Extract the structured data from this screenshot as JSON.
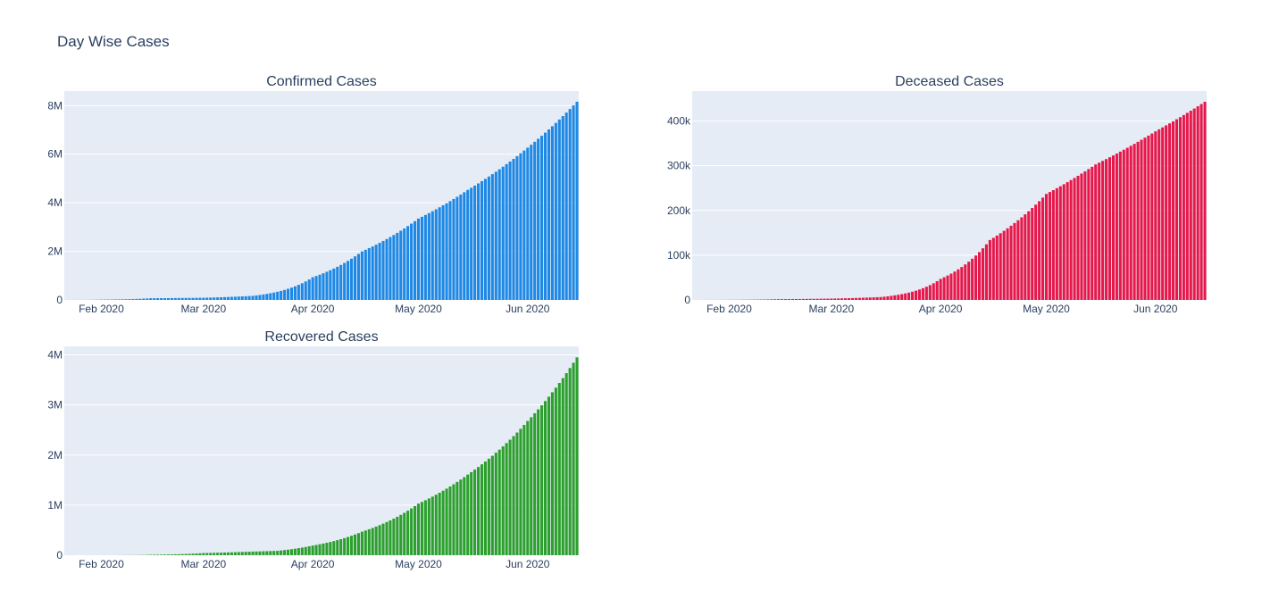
{
  "figure": {
    "title": "Day Wise Cases"
  },
  "chart_data": [
    {
      "type": "bar",
      "title": "Confirmed Cases",
      "color": "#1e88e5",
      "x_start": "2020-01-22",
      "x_end": "2020-06-15",
      "x_tick_labels": [
        "Feb 2020",
        "Mar 2020",
        "Apr 2020",
        "May 2020",
        "Jun 2020"
      ],
      "x_tick_dates": [
        "2020-02-01",
        "2020-03-01",
        "2020-04-01",
        "2020-05-01",
        "2020-06-01"
      ],
      "y_ticks": [
        0,
        2000000,
        4000000,
        6000000,
        8000000
      ],
      "y_tick_labels": [
        "0",
        "2M",
        "4M",
        "6M",
        "8M"
      ],
      "ylim": [
        0,
        8600000
      ],
      "anchors": [
        [
          "2020-01-22",
          555
        ],
        [
          "2020-02-01",
          12000
        ],
        [
          "2020-02-15",
          69000
        ],
        [
          "2020-03-01",
          88000
        ],
        [
          "2020-03-15",
          167000
        ],
        [
          "2020-03-22",
          337000
        ],
        [
          "2020-04-01",
          932000
        ],
        [
          "2020-04-15",
          2000000
        ],
        [
          "2020-05-01",
          3350000
        ],
        [
          "2020-05-15",
          4530000
        ],
        [
          "2020-06-01",
          6270000
        ],
        [
          "2020-06-15",
          8160000
        ]
      ]
    },
    {
      "type": "bar",
      "title": "Deceased Cases",
      "color": "#e8174a",
      "x_start": "2020-01-22",
      "x_end": "2020-06-15",
      "x_tick_labels": [
        "Feb 2020",
        "Mar 2020",
        "Apr 2020",
        "May 2020",
        "Jun 2020"
      ],
      "x_tick_dates": [
        "2020-02-01",
        "2020-03-01",
        "2020-04-01",
        "2020-05-01",
        "2020-06-01"
      ],
      "y_ticks": [
        0,
        100000,
        200000,
        300000,
        400000
      ],
      "y_tick_labels": [
        "0",
        "100k",
        "200k",
        "300k",
        "400k"
      ],
      "ylim": [
        0,
        467000
      ],
      "anchors": [
        [
          "2020-01-22",
          17
        ],
        [
          "2020-02-01",
          259
        ],
        [
          "2020-02-15",
          1666
        ],
        [
          "2020-03-01",
          2996
        ],
        [
          "2020-03-15",
          6440
        ],
        [
          "2020-03-22",
          14600
        ],
        [
          "2020-04-01",
          47000
        ],
        [
          "2020-04-15",
          134000
        ],
        [
          "2020-05-01",
          237000
        ],
        [
          "2020-05-15",
          303000
        ],
        [
          "2020-06-01",
          377000
        ],
        [
          "2020-06-15",
          443000
        ]
      ]
    },
    {
      "type": "bar",
      "title": "Recovered Cases",
      "color": "#2ca02c",
      "x_start": "2020-01-22",
      "x_end": "2020-06-15",
      "x_tick_labels": [
        "Feb 2020",
        "Mar 2020",
        "Apr 2020",
        "May 2020",
        "Jun 2020"
      ],
      "x_tick_dates": [
        "2020-02-01",
        "2020-03-01",
        "2020-04-01",
        "2020-05-01",
        "2020-06-01"
      ],
      "y_ticks": [
        0,
        1000000,
        2000000,
        3000000,
        4000000
      ],
      "y_tick_labels": [
        "0",
        "1M",
        "2M",
        "3M",
        "4M"
      ],
      "ylim": [
        0,
        4170000
      ],
      "anchors": [
        [
          "2020-01-22",
          28
        ],
        [
          "2020-02-01",
          300
        ],
        [
          "2020-02-15",
          9000
        ],
        [
          "2020-03-01",
          43000
        ],
        [
          "2020-03-15",
          73000
        ],
        [
          "2020-03-22",
          88000
        ],
        [
          "2020-04-01",
          193000
        ],
        [
          "2020-04-15",
          470000
        ],
        [
          "2020-05-01",
          1030000
        ],
        [
          "2020-05-15",
          1610000
        ],
        [
          "2020-06-01",
          2680000
        ],
        [
          "2020-06-15",
          3950000
        ]
      ]
    }
  ]
}
